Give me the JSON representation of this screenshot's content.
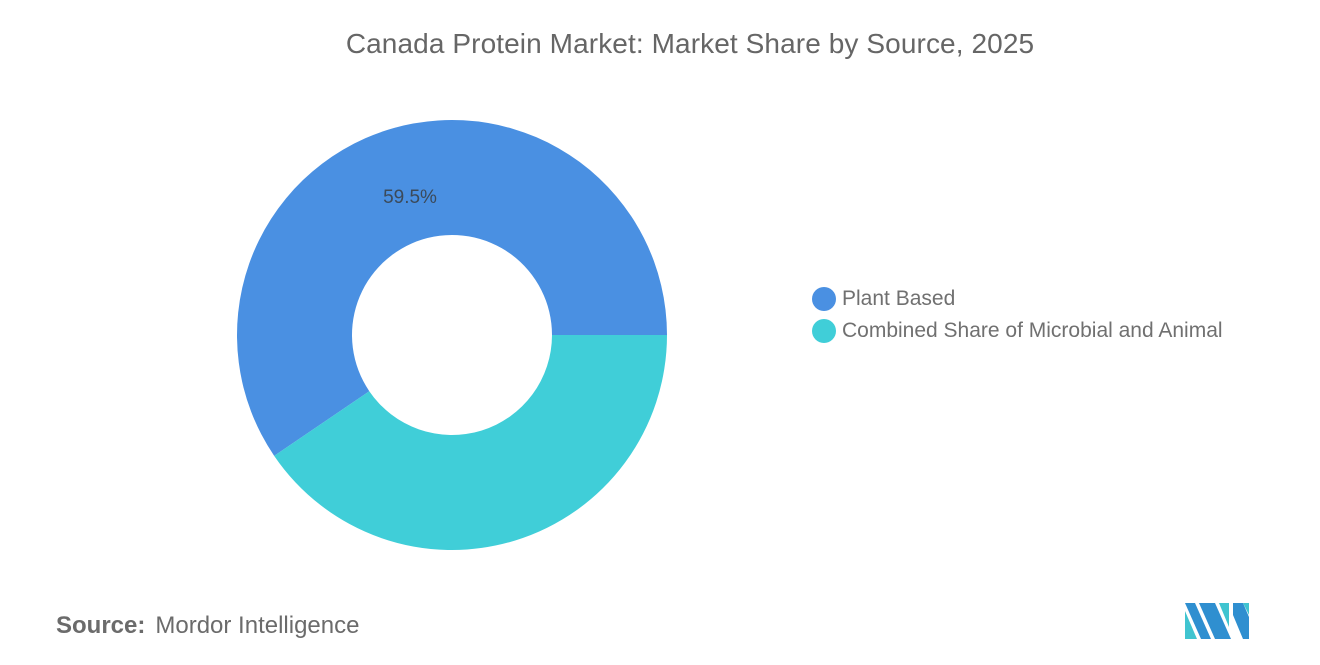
{
  "title": "Canada Protein Market: Market Share by Source, 2025",
  "chart_data": {
    "type": "pie",
    "subtype": "donut",
    "title": "Canada Protein Market: Market Share by Source, 2025",
    "categories": [
      "Plant Based",
      "Combined Share of Microbial and Animal"
    ],
    "values": [
      59.5,
      40.5
    ],
    "unit": "%",
    "colors": [
      "#4a90e2",
      "#40ced8"
    ],
    "data_labels": [
      {
        "category": "Plant Based",
        "text": "59.5%"
      }
    ],
    "legend_position": "right",
    "start_angle": "3 o'clock, counterclockwise"
  },
  "labels": {
    "plant_based_value": "59.5%"
  },
  "legend": {
    "items": [
      {
        "label": "Plant Based",
        "color": "#4a90e2"
      },
      {
        "label": "Combined Share of Microbial and Animal",
        "color": "#40ced8"
      }
    ]
  },
  "footer": {
    "source_key": "Source:",
    "source_value": "Mordor Intelligence"
  },
  "logo": {
    "name": "mordor-intelligence-logo",
    "colors": [
      "#2f8fd0",
      "#40c4d0"
    ]
  }
}
